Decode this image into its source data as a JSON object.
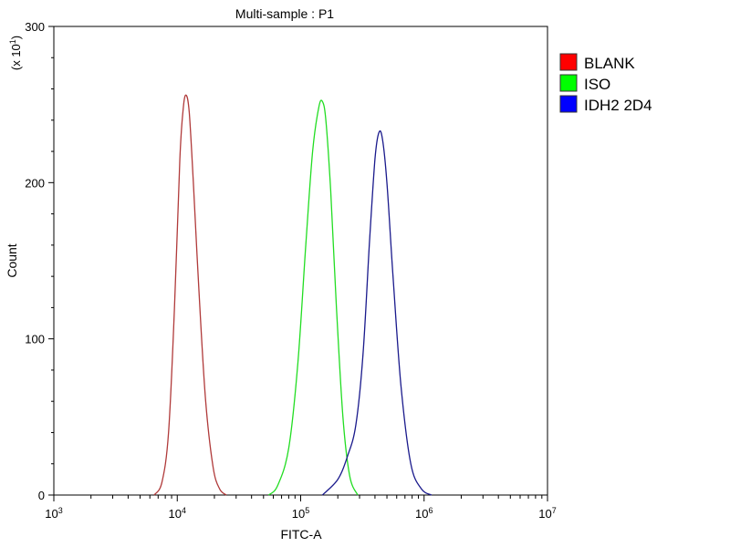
{
  "chart_data": {
    "type": "line",
    "title": "Multi-sample : P1",
    "xlabel": "FITC-A",
    "ylabel": "Count",
    "y_scale_label": "(x 10",
    "y_scale_exp": "1",
    "x_scale": "log",
    "xlim": [
      1000,
      10000000
    ],
    "ylim": [
      0,
      300
    ],
    "x_ticks": [
      {
        "value": 1000,
        "base": "10",
        "exp": "3"
      },
      {
        "value": 10000,
        "base": "10",
        "exp": "4"
      },
      {
        "value": 100000,
        "base": "10",
        "exp": "5"
      },
      {
        "value": 1000000,
        "base": "10",
        "exp": "6"
      },
      {
        "value": 10000000,
        "base": "10",
        "exp": "7"
      }
    ],
    "y_ticks": [
      {
        "value": 0,
        "label": "0"
      },
      {
        "value": 100,
        "label": "100"
      },
      {
        "value": 200,
        "label": "200"
      },
      {
        "value": 300,
        "label": "300"
      }
    ],
    "legend_position": "top-right",
    "series": [
      {
        "name": "BLANK",
        "color": "#b03a3a",
        "legend_color": "#ff0000",
        "x": [
          6500,
          7500,
          8500,
          9500,
          10500,
          11200,
          11800,
          12500,
          13500,
          15000,
          17000,
          19500,
          22000,
          25000
        ],
        "y": [
          0,
          8,
          40,
          120,
          215,
          248,
          256,
          245,
          200,
          130,
          60,
          18,
          4,
          0
        ]
      },
      {
        "name": "ISO",
        "color": "#22dd22",
        "legend_color": "#00ff00",
        "x": [
          55000,
          65000,
          80000,
          95000,
          110000,
          125000,
          140000,
          150000,
          160000,
          175000,
          195000,
          220000,
          250000,
          290000
        ],
        "y": [
          0,
          6,
          30,
          85,
          160,
          220,
          248,
          252,
          240,
          195,
          120,
          50,
          12,
          0
        ]
      },
      {
        "name": "IDH2 2D4",
        "color": "#1a1a8c",
        "legend_color": "#0000ff",
        "x": [
          150000,
          200000,
          240000,
          280000,
          320000,
          360000,
          400000,
          430000,
          460000,
          500000,
          560000,
          650000,
          780000,
          950000,
          1150000
        ],
        "y": [
          0,
          10,
          25,
          45,
          90,
          160,
          215,
          232,
          228,
          200,
          140,
          70,
          20,
          4,
          0
        ]
      }
    ]
  }
}
